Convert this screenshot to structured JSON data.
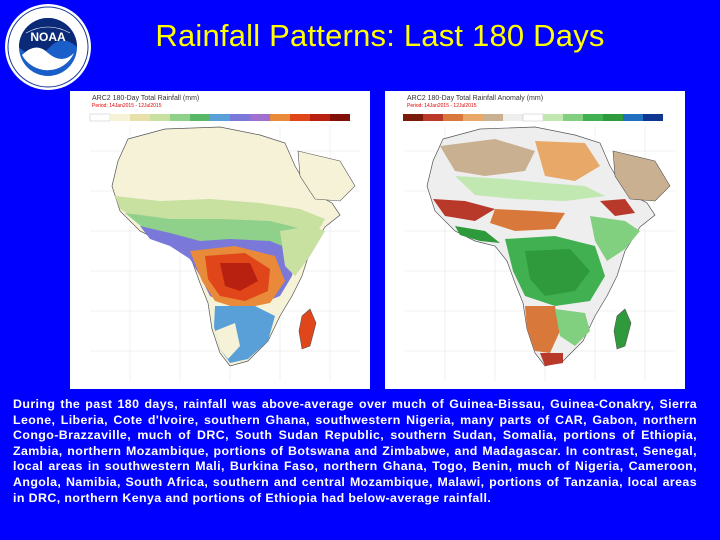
{
  "header": {
    "title": "Rainfall Patterns: Last 180 Days",
    "logo_text": "NOAA"
  },
  "maps": {
    "left": {
      "heading": "ARC2 180-Day Total Rainfall (mm)",
      "period": "Period: 14Jan2015 - 12Jul2015"
    },
    "right": {
      "heading": "ARC2 180-Day Total Rainfall Anomaly (mm)",
      "period": "Period: 14Jan2015 - 12Jul2015"
    }
  },
  "description": "During the past 180 days, rainfall was above-average over much of Guinea-Bissau, Guinea-Conakry, Sierra Leone, Liberia, Cote d'Ivoire, southern Ghana, southwestern Nigeria, many parts of CAR, Gabon, northern Congo-Brazzaville, much of DRC, South Sudan Republic, southern Sudan, Somalia, portions of Ethiopia, Zambia, northern Mozambique, portions of Botswana and Zimbabwe, and Madagascar. In contrast, Senegal, local areas in southwestern Mali, Burkina Faso, northern Ghana, Togo, Benin, much of Nigeria, Cameroon, Angola, Namibia, South Africa, southern and central Mozambique, Malawi, portions of Tanzania, local areas in DRC, northern Kenya and portions of Ethiopia had below-average rainfall.",
  "colors": {
    "background": "#0000ff",
    "title": "#ffff00",
    "text": "#ffffff",
    "ocean": "#ffffff",
    "rain_low": "#f5f2d8",
    "rain_mid": "#8fd08a",
    "rain_high": "#e0461a",
    "anomaly_dry": "#8b5a3c",
    "anomaly_wet": "#2f9a3c",
    "anomaly_neutral": "#eeeeee"
  }
}
